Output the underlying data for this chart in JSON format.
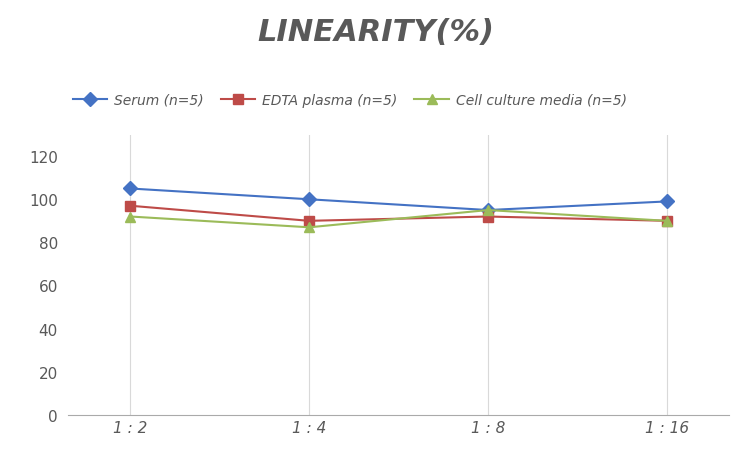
{
  "title": "LINEARITY(%)",
  "title_fontsize": 22,
  "title_style": "italic",
  "title_weight": "bold",
  "title_color": "#595959",
  "x_labels": [
    "1 : 2",
    "1 : 4",
    "1 : 8",
    "1 : 16"
  ],
  "x_positions": [
    0,
    1,
    2,
    3
  ],
  "serum": [
    105,
    100,
    95,
    99
  ],
  "edta": [
    97,
    90,
    92,
    90
  ],
  "cell": [
    92,
    87,
    95,
    90
  ],
  "serum_color": "#4472C4",
  "edta_color": "#BE4B48",
  "cell_color": "#9BBB59",
  "serum_label": "Serum (n=5)",
  "edta_label": "EDTA plasma (n=5)",
  "cell_label": "Cell culture media (n=5)",
  "ylim": [
    0,
    130
  ],
  "yticks": [
    0,
    20,
    40,
    60,
    80,
    100,
    120
  ],
  "grid_color": "#D9D9D9",
  "background_color": "#FFFFFF",
  "linewidth": 1.5,
  "marker_size": 7
}
